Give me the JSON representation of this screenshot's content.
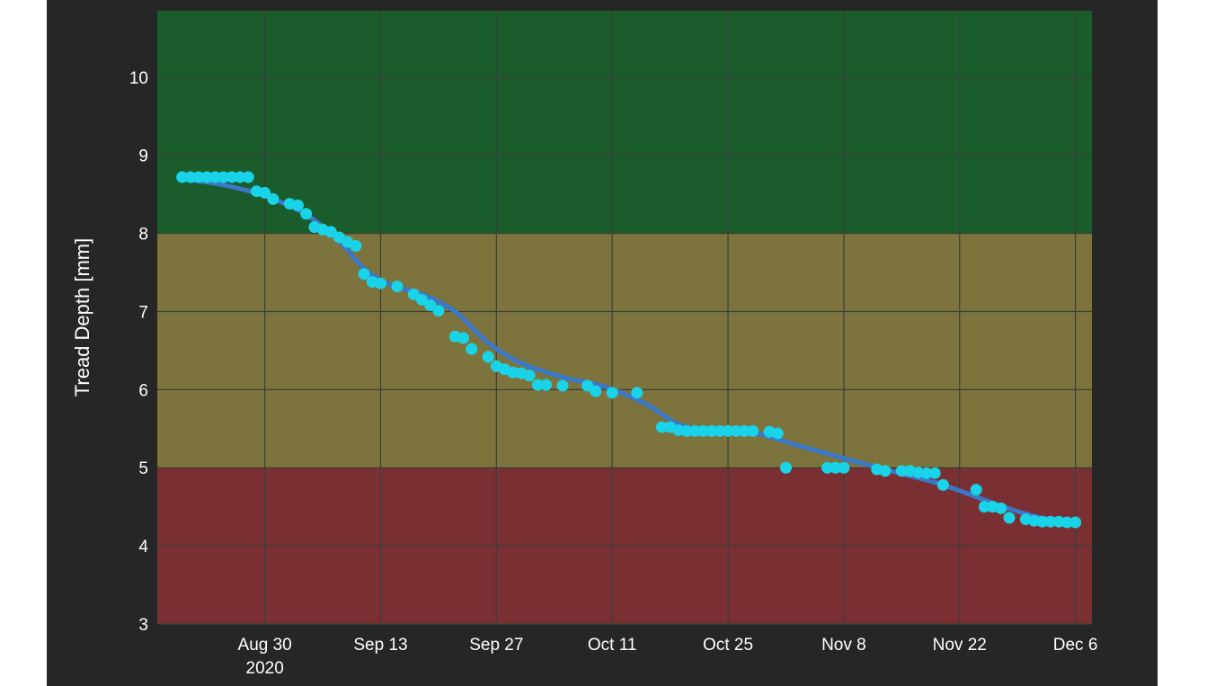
{
  "chart_data": {
    "type": "scatter",
    "title": "",
    "xlabel": "",
    "ylabel": "Tread Depth [mm]",
    "xlim": [
      "2020-08-17",
      "2020-12-08"
    ],
    "ylim": [
      3,
      10.85
    ],
    "y_ticks": [
      3,
      4,
      5,
      6,
      7,
      8,
      9,
      10
    ],
    "x_ticks": [
      {
        "date": "2020-08-30",
        "label": "Aug 30",
        "sublabel": "2020"
      },
      {
        "date": "2020-09-13",
        "label": "Sep 13"
      },
      {
        "date": "2020-09-27",
        "label": "Sep 27"
      },
      {
        "date": "2020-10-11",
        "label": "Oct 11"
      },
      {
        "date": "2020-10-25",
        "label": "Oct 25"
      },
      {
        "date": "2020-11-08",
        "label": "Nov 8"
      },
      {
        "date": "2020-11-22",
        "label": "Nov 22"
      },
      {
        "date": "2020-12-06",
        "label": "Dec 6"
      }
    ],
    "grid": true,
    "background_bands": [
      {
        "from": 8,
        "to": 10.85,
        "color": "#1a5c2b"
      },
      {
        "from": 5,
        "to": 8,
        "color": "#7d743d"
      },
      {
        "from": 3,
        "to": 5,
        "color": "#7a2f32"
      }
    ],
    "series": [
      {
        "type": "scatter",
        "color": "#19d3e8",
        "x": [
          "2020-08-20",
          "2020-08-21",
          "2020-08-22",
          "2020-08-23",
          "2020-08-24",
          "2020-08-25",
          "2020-08-26",
          "2020-08-27",
          "2020-08-28",
          "2020-08-29",
          "2020-08-30",
          "2020-08-31",
          "2020-09-02",
          "2020-09-03",
          "2020-09-04",
          "2020-09-05",
          "2020-09-06",
          "2020-09-07",
          "2020-09-08",
          "2020-09-09",
          "2020-09-10",
          "2020-09-11",
          "2020-09-12",
          "2020-09-13",
          "2020-09-15",
          "2020-09-17",
          "2020-09-18",
          "2020-09-19",
          "2020-09-20",
          "2020-09-22",
          "2020-09-23",
          "2020-09-24",
          "2020-09-26",
          "2020-09-27",
          "2020-09-28",
          "2020-09-29",
          "2020-09-30",
          "2020-10-01",
          "2020-10-02",
          "2020-10-03",
          "2020-10-05",
          "2020-10-08",
          "2020-10-09",
          "2020-10-11",
          "2020-10-14",
          "2020-10-17",
          "2020-10-18",
          "2020-10-19",
          "2020-10-20",
          "2020-10-21",
          "2020-10-22",
          "2020-10-23",
          "2020-10-24",
          "2020-10-25",
          "2020-10-26",
          "2020-10-27",
          "2020-10-28",
          "2020-10-30",
          "2020-10-31",
          "2020-11-01",
          "2020-11-06",
          "2020-11-07",
          "2020-11-08",
          "2020-11-12",
          "2020-11-13",
          "2020-11-15",
          "2020-11-16",
          "2020-11-17",
          "2020-11-18",
          "2020-11-19",
          "2020-11-20",
          "2020-11-24",
          "2020-11-25",
          "2020-11-26",
          "2020-11-27",
          "2020-11-28",
          "2020-11-30",
          "2020-12-01",
          "2020-12-02",
          "2020-12-03",
          "2020-12-04",
          "2020-12-05",
          "2020-12-06"
        ],
        "y": [
          8.72,
          8.72,
          8.72,
          8.72,
          8.72,
          8.72,
          8.72,
          8.72,
          8.72,
          8.54,
          8.52,
          8.44,
          8.38,
          8.36,
          8.25,
          8.08,
          8.05,
          8.02,
          7.95,
          7.89,
          7.84,
          7.48,
          7.38,
          7.36,
          7.32,
          7.22,
          7.15,
          7.08,
          7.01,
          6.68,
          6.66,
          6.52,
          6.42,
          6.3,
          6.26,
          6.22,
          6.21,
          6.18,
          6.06,
          6.06,
          6.05,
          6.05,
          5.98,
          5.96,
          5.96,
          5.52,
          5.52,
          5.48,
          5.47,
          5.47,
          5.47,
          5.47,
          5.47,
          5.47,
          5.47,
          5.47,
          5.47,
          5.46,
          5.44,
          5.0,
          5.0,
          5.0,
          5.0,
          4.98,
          4.96,
          4.96,
          4.96,
          4.94,
          4.93,
          4.93,
          4.78,
          4.72,
          4.5,
          4.5,
          4.48,
          4.36,
          4.34,
          4.32,
          4.31,
          4.31,
          4.31,
          4.3,
          4.3
        ]
      },
      {
        "type": "line",
        "color": "#3a78c9",
        "x": [
          "2020-08-20",
          "2020-08-25",
          "2020-08-30",
          "2020-09-04",
          "2020-09-08",
          "2020-09-11",
          "2020-09-14",
          "2020-09-18",
          "2020-09-22",
          "2020-09-26",
          "2020-09-30",
          "2020-10-05",
          "2020-10-10",
          "2020-10-15",
          "2020-10-19",
          "2020-10-23",
          "2020-10-28",
          "2020-11-02",
          "2020-11-08",
          "2020-11-14",
          "2020-11-20",
          "2020-11-26",
          "2020-12-01",
          "2020-12-06"
        ],
        "y": [
          8.7,
          8.62,
          8.48,
          8.24,
          7.9,
          7.55,
          7.35,
          7.22,
          7.0,
          6.6,
          6.34,
          6.16,
          6.04,
          5.82,
          5.56,
          5.48,
          5.45,
          5.3,
          5.12,
          4.95,
          4.78,
          4.55,
          4.38,
          4.28
        ]
      }
    ]
  }
}
